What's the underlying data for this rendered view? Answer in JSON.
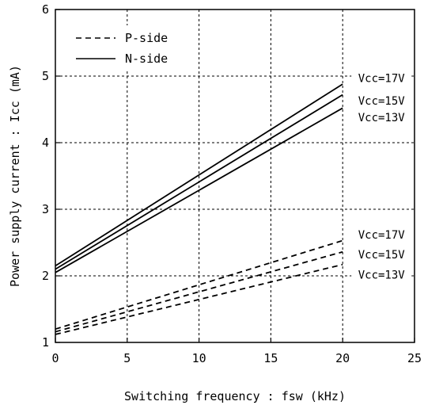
{
  "chart_data": {
    "type": "line",
    "xlabel": "Switching frequency : fsw (kHz)",
    "ylabel": "Power supply current : Icc (mA)",
    "xlim": [
      0,
      25
    ],
    "ylim": [
      1,
      6
    ],
    "xticks": [
      "0",
      "5",
      "10",
      "15",
      "20",
      "25"
    ],
    "yticks": [
      "1",
      "2",
      "3",
      "4",
      "5",
      "6"
    ],
    "grid": "dashed",
    "legend": {
      "placement": "top-left",
      "entries": [
        {
          "label": "P-side",
          "style": "dashed"
        },
        {
          "label": "N-side",
          "style": "solid"
        }
      ]
    },
    "series": [
      {
        "name": "N-side Vcc=17V",
        "style": "solid",
        "x": [
          0,
          20
        ],
        "y": [
          2.15,
          4.88
        ]
      },
      {
        "name": "N-side Vcc=15V",
        "style": "solid",
        "x": [
          0,
          20
        ],
        "y": [
          2.1,
          4.72
        ]
      },
      {
        "name": "N-side Vcc=13V",
        "style": "solid",
        "x": [
          0,
          20
        ],
        "y": [
          2.05,
          4.52
        ]
      },
      {
        "name": "P-side Vcc=17V",
        "style": "dashed",
        "x": [
          0,
          20
        ],
        "y": [
          1.2,
          2.53
        ]
      },
      {
        "name": "P-side Vcc=15V",
        "style": "dashed",
        "x": [
          0,
          20
        ],
        "y": [
          1.16,
          2.36
        ]
      },
      {
        "name": "P-side Vcc=13V",
        "style": "dashed",
        "x": [
          0,
          20
        ],
        "y": [
          1.12,
          2.17
        ]
      }
    ],
    "annotations": [
      {
        "text": "Vcc=17V",
        "x": 22.7,
        "y": 4.97
      },
      {
        "text": "Vcc=15V",
        "x": 22.7,
        "y": 4.63
      },
      {
        "text": "Vcc=13V",
        "x": 22.7,
        "y": 4.38
      },
      {
        "text": "Vcc=17V",
        "x": 22.7,
        "y": 2.62
      },
      {
        "text": "Vcc=15V",
        "x": 22.7,
        "y": 2.32
      },
      {
        "text": "Vcc=13V",
        "x": 22.7,
        "y": 2.02
      }
    ]
  }
}
